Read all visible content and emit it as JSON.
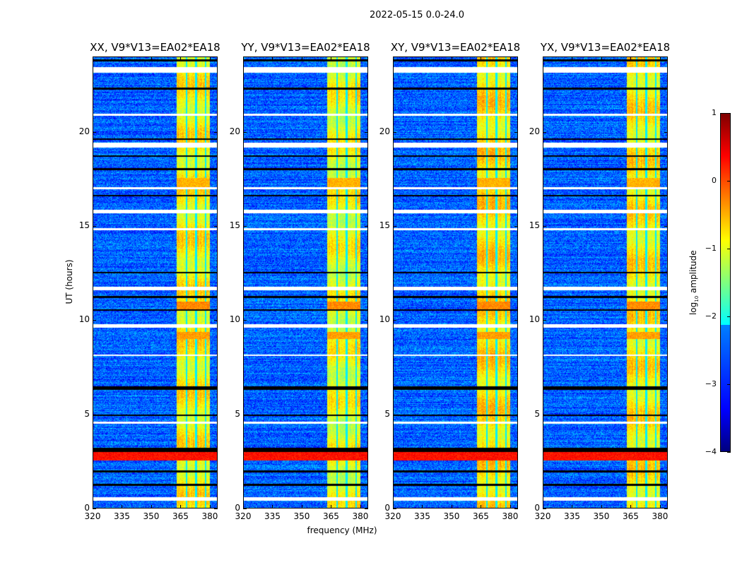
{
  "chart_data": {
    "type": "heatmap",
    "suptitle": "2022-05-15 0.0-24.0",
    "xlabel": "frequency (MHz)",
    "ylabel": "UT (hours)",
    "xlim": [
      320,
      384
    ],
    "ylim": [
      0,
      24
    ],
    "xticks": [
      "320",
      "335",
      "350",
      "365",
      "380"
    ],
    "xtick_values": [
      320,
      335,
      350,
      365,
      380
    ],
    "yticks": [
      "0",
      "5",
      "10",
      "15",
      "20"
    ],
    "ytick_values": [
      0,
      5,
      10,
      15,
      20
    ],
    "colormap": "jet",
    "colorbar": {
      "label": "log10 amplitude",
      "label_main": "log",
      "label_sub": "10",
      "label_rest": " amplitude",
      "range": [
        -4,
        1
      ],
      "ticks": [
        "1",
        "0",
        "−1",
        "−2",
        "−3",
        "−4"
      ],
      "tick_values": [
        1,
        0,
        -1,
        -2,
        -3,
        -4
      ]
    },
    "background_level": -2.9,
    "signal_band_mhz": [
      363,
      380
    ],
    "signal_band_level": -1.0,
    "band_gaps_mhz": [
      368,
      373,
      378
    ],
    "flagged_white_hours": [
      [
        23.2,
        23.5
      ],
      [
        20.9,
        21.0
      ],
      [
        19.2,
        19.45
      ],
      [
        17.0,
        17.1
      ],
      [
        15.7,
        15.9
      ],
      [
        14.8,
        14.9
      ],
      [
        11.6,
        11.8
      ],
      [
        9.6,
        9.8
      ],
      [
        8.1,
        8.2
      ],
      [
        4.5,
        4.6
      ],
      [
        0.4,
        0.6
      ]
    ],
    "flagged_black_hours": [
      [
        23.8,
        23.9
      ],
      [
        22.3,
        22.4
      ],
      [
        19.6,
        19.7
      ],
      [
        18.7,
        18.8
      ],
      [
        18.0,
        18.1
      ],
      [
        16.6,
        16.7
      ],
      [
        12.5,
        12.6
      ],
      [
        11.2,
        11.3
      ],
      [
        10.5,
        10.6
      ],
      [
        6.3,
        6.5
      ],
      [
        4.9,
        5.0
      ],
      [
        3.0,
        3.2
      ],
      [
        1.9,
        2.0
      ],
      [
        1.2,
        1.3
      ]
    ],
    "rfi_events": [
      {
        "hours": [
          2.55,
          3.0
        ],
        "level": 0.3,
        "scope": "all"
      },
      {
        "hours": [
          10.6,
          11.0
        ],
        "level": -0.3,
        "scope": "band"
      },
      {
        "hours": [
          9.0,
          9.4
        ],
        "level": -0.4,
        "scope": "band"
      },
      {
        "hours": [
          17.0,
          17.6
        ],
        "level": -0.5,
        "scope": "band"
      }
    ],
    "panels": [
      {
        "title": "XX, V9*V13=EA02*EA18",
        "band_strength": 1.0
      },
      {
        "title": "YY, V9*V13=EA02*EA18",
        "band_strength": 1.1
      },
      {
        "title": "XY, V9*V13=EA02*EA18",
        "band_strength": 0.9
      },
      {
        "title": "YX, V9*V13=EA02*EA18",
        "band_strength": 0.95
      }
    ]
  }
}
